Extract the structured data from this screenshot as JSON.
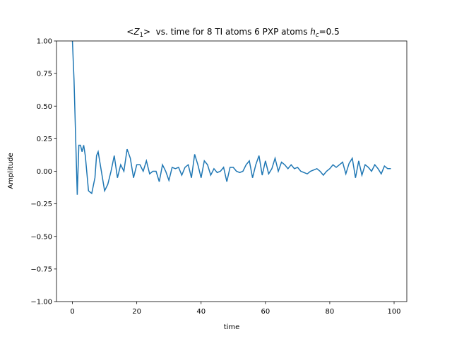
{
  "chart_data": {
    "type": "line",
    "title": [
      "<",
      "Z",
      "1",
      ">",
      "  vs. time for 8 TI atoms 6 PXP atoms ",
      "h",
      "c",
      "=0.5"
    ],
    "xlabel": "time",
    "ylabel": "Amplitude",
    "xlim": [
      -4.95,
      103.95
    ],
    "ylim": [
      -1,
      1
    ],
    "xticks": [
      0,
      20,
      40,
      60,
      80,
      100
    ],
    "yticks": [
      {
        "value": -1,
        "label": "−1.00"
      },
      {
        "value": -0.75,
        "label": "−0.75"
      },
      {
        "value": -0.5,
        "label": "−0.50"
      },
      {
        "value": -0.25,
        "label": "−0.25"
      },
      {
        "value": 0,
        "label": "0.00"
      },
      {
        "value": 0.25,
        "label": "0.25"
      },
      {
        "value": 0.5,
        "label": "0.50"
      },
      {
        "value": 0.75,
        "label": "0.75"
      },
      {
        "value": 1,
        "label": "1.00"
      }
    ],
    "x": [
      0,
      0.5,
      1.5,
      2,
      2.5,
      3,
      3.5,
      4,
      5,
      6,
      7,
      7.5,
      8,
      9,
      10,
      11,
      12,
      13,
      14,
      15,
      16,
      17,
      18,
      19,
      20,
      21,
      22,
      23,
      24,
      25,
      26,
      27,
      28,
      29,
      30,
      31,
      32,
      33,
      34,
      35,
      36,
      37,
      38,
      39,
      40,
      41,
      42,
      43,
      44,
      45,
      46,
      47,
      48,
      49,
      50,
      51,
      52,
      53,
      54,
      55,
      56,
      57,
      58,
      59,
      60,
      61,
      62,
      63,
      64,
      65,
      66,
      67,
      68,
      69,
      70,
      71,
      72,
      73,
      74,
      75,
      76,
      77,
      78,
      79,
      80,
      81,
      82,
      83,
      84,
      85,
      86,
      87,
      88,
      89,
      90,
      91,
      92,
      93,
      94,
      95,
      96,
      97,
      98,
      99
    ],
    "series": [
      {
        "name": "Z1",
        "color": "#1f77b4",
        "values": [
          1.0,
          0.7,
          -0.18,
          0.2,
          0.2,
          0.15,
          0.2,
          0.12,
          -0.15,
          -0.17,
          -0.05,
          0.12,
          0.15,
          0.0,
          -0.15,
          -0.1,
          0.0,
          0.12,
          -0.05,
          0.05,
          0.0,
          0.17,
          0.1,
          -0.05,
          0.05,
          0.05,
          0.0,
          0.08,
          -0.02,
          0.0,
          0.0,
          -0.08,
          0.05,
          0.0,
          -0.07,
          0.03,
          0.02,
          0.03,
          -0.03,
          0.03,
          0.05,
          -0.05,
          0.13,
          0.05,
          -0.05,
          0.08,
          0.05,
          -0.03,
          0.02,
          -0.01,
          0.0,
          0.03,
          -0.08,
          0.03,
          0.03,
          0.0,
          -0.01,
          0.0,
          0.05,
          0.08,
          -0.05,
          0.05,
          0.12,
          -0.03,
          0.08,
          -0.02,
          0.02,
          0.1,
          0.0,
          0.07,
          0.05,
          0.02,
          0.05,
          0.02,
          0.03,
          0.0,
          -0.01,
          -0.02,
          0.0,
          0.01,
          0.02,
          0.0,
          -0.03,
          0.0,
          0.02,
          0.05,
          0.03,
          0.05,
          0.07,
          -0.02,
          0.06,
          0.1,
          -0.05,
          0.08,
          -0.03,
          0.05,
          0.03,
          0.0,
          0.05,
          0.02,
          -0.02,
          0.04,
          0.02,
          0.02
        ]
      }
    ]
  }
}
